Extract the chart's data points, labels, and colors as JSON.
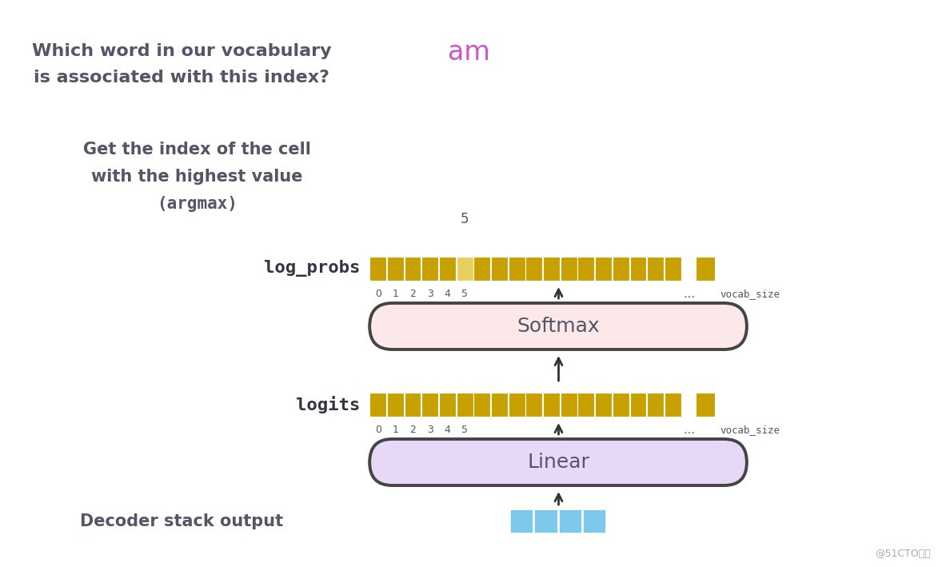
{
  "bg_color": "#ffffff",
  "title_text1": "Which word in our vocabulary",
  "title_text2": "is associated with this index?",
  "output_word": "am",
  "output_word_color": "#cc55cc",
  "argmax_text1": "Get the index of the cell",
  "argmax_text2": "with the highest value",
  "argmax_text3": "(argmax)",
  "argmax_number": "5",
  "log_probs_label": "log_probs",
  "logits_label": "logits",
  "decoder_label": "Decoder stack output",
  "softmax_label": "Softmax",
  "linear_label": "Linear",
  "gold_color": "#c8a000",
  "gold_highlight_color": "#e8d060",
  "blue_color": "#7ec8ec",
  "softmax_fill": "#fce8e8",
  "softmax_edge": "#444444",
  "linear_fill": "#e8d8f8",
  "linear_edge": "#444444",
  "text_color": "#555566",
  "monospace_color": "#333344",
  "watermark": "@51CTO博客",
  "n_cells_main": 18,
  "highlight_cell": 5,
  "n_decoder_cells": 4,
  "fig_width": 11.78,
  "fig_height": 7.09
}
